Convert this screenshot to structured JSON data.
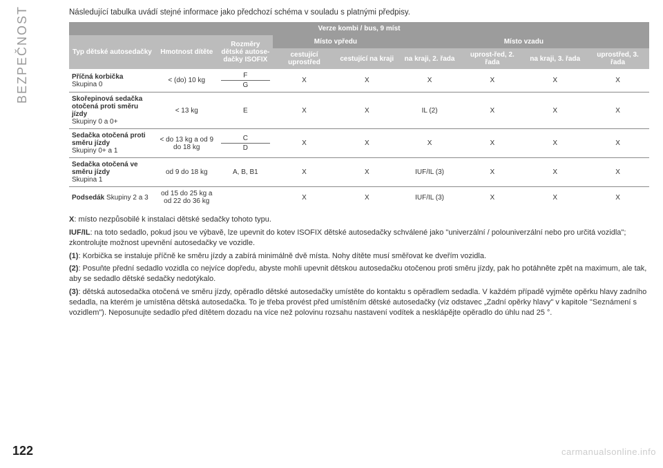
{
  "sidebar": {
    "label": "BEZPEČNOST"
  },
  "pageNumber": "122",
  "intro": "Následující tabulka uvádí stejné informace jako předchozí schéma v souladu s platnými předpisy.",
  "table": {
    "topHeader": "Verze kombi / bus, 9 míst",
    "h_typ": "Typ dětské autosedačky",
    "h_hmot": "Hmotnost dítěte",
    "h_roz": "Rozměry dětské autose-dačky ISOFIX",
    "h_front": "Místo vpředu",
    "h_rear": "Místo vzadu",
    "h_f1": "cestující uprostřed",
    "h_f2": "cestující na kraji",
    "h_r1": "na kraji, 2. řada",
    "h_r2": "uprost-řed, 2. řada",
    "h_r3": "na kraji, 3. řada",
    "h_r4": "uprostřed, 3. řada",
    "rows": [
      {
        "label_b": "Příčná korbička",
        "label_r": "Skupina 0",
        "w": "< (do) 10 kg",
        "dim_top": "F",
        "dim_bot": "G",
        "v": [
          "X",
          "X",
          "X",
          "X",
          "X",
          "X"
        ]
      },
      {
        "label_b": "Skořepinová sedačka otočená proti směru jízdy",
        "label_r": "Skupiny 0 a 0+",
        "w": "< 13 kg",
        "dim": "E",
        "v": [
          "X",
          "X",
          "IL (2)",
          "X",
          "X",
          "X"
        ]
      },
      {
        "label_b": "Sedačka otočená proti směru jízdy",
        "label_r": "Skupiny 0+ a 1",
        "w": "< do 13 kg a od 9 do 18 kg",
        "dim_top": "C",
        "dim_bot": "D",
        "v": [
          "X",
          "X",
          "X",
          "X",
          "X",
          "X"
        ]
      },
      {
        "label_b": "Sedačka otočená ve směru jízdy",
        "label_r": "Skupina 1",
        "w": "od 9 do 18 kg",
        "dim": "A, B, B1",
        "v": [
          "X",
          "X",
          "IUF/IL (3)",
          "X",
          "X",
          "X"
        ]
      },
      {
        "label_b": "Podsedák",
        "label_r": " Skupiny 2 a 3",
        "w": "od 15 do 25 kg a od 22 do 36 kg",
        "dim": "",
        "v": [
          "X",
          "X",
          "IUF/IL (3)",
          "X",
          "X",
          "X"
        ]
      }
    ]
  },
  "notes": {
    "x": "X: místo nezpůsobilé k instalaci dětské sedačky tohoto typu.",
    "iuf": "IUF/IL: na toto sedadlo, pokud jsou ve výbavě, lze upevnit do kotev ISOFIX dětské autosedačky schválené jako \"univerzální / polouniverzální nebo pro určitá vozidla\"; zkontrolujte možnost upevnění autosedačky ve vozidle.",
    "n1": "(1): Korbička se instaluje příčně ke směru jízdy a zabírá minimálně dvě místa. Nohy dítěte musí směřovat ke dveřím vozidla.",
    "n2": "(2): Posuňte přední sedadlo vozidla co nejvíce dopředu, abyste mohli upevnit dětskou autosedačku otočenou proti směru jízdy, pak ho potáhněte zpět na maximum, ale tak, aby se sedadlo dětské sedačky nedotýkalo.",
    "n3": "(3): dětská autosedačka otočená ve směru jízdy, opěradlo dětské autosedačky umístěte do kontaktu s opěradlem sedadla. V každém případě vyjměte opěrku hlavy zadního sedadla, na kterém je umístěna dětská autosedačka. To je třeba provést před umístěním dětské autosedačky (viz odstavec „Zadní opěrky hlavy\" v kapitole \"Seznámení s vozidlem\"). Neposunujte sedadlo před dítětem dozadu na více než polovinu rozsahu nastavení vodítek a nesklápějte opěradlo do úhlu nad 25 °."
  },
  "watermark": "carmanualsonline.info"
}
